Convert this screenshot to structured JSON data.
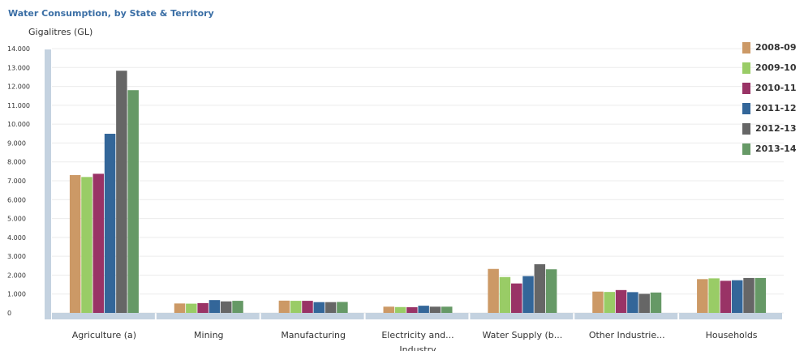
{
  "title": "Water Consumption, by State & Territory",
  "colors": {
    "title": "#3a6ea5",
    "axis_band": "#c4d2e0",
    "grid": "#ececec",
    "tick_text": "#333333"
  },
  "chart_data": {
    "type": "bar",
    "title": "Water Consumption, by State & Territory",
    "xlabel": "Industry",
    "ylabel": "Gigalitres (GL)",
    "ylim": [
      0,
      14000
    ],
    "y_ticks": [
      0,
      1000,
      2000,
      3000,
      4000,
      5000,
      6000,
      7000,
      8000,
      9000,
      10000,
      11000,
      12000,
      13000,
      14000
    ],
    "y_tick_labels": [
      "0",
      "1.000",
      "2.000",
      "3.000",
      "4.000",
      "5.000",
      "6.000",
      "7.000",
      "8.000",
      "9.000",
      "10.000",
      "11.000",
      "12.000",
      "13.000",
      "14.000"
    ],
    "grid": true,
    "legend_position": "right",
    "categories": [
      "Agriculture (a)",
      "Mining",
      "Manufacturing",
      "Electricity and...",
      "Water Supply (b...",
      "Other Industrie...",
      "Households"
    ],
    "series": [
      {
        "name": "2008-09",
        "color": "#cc9966",
        "values": [
          7300,
          500,
          650,
          330,
          2330,
          1130,
          1790
        ]
      },
      {
        "name": "2009-10",
        "color": "#99cc66",
        "values": [
          7200,
          490,
          640,
          310,
          1900,
          1110,
          1830
        ]
      },
      {
        "name": "2010-11",
        "color": "#993366",
        "values": [
          7370,
          520,
          640,
          300,
          1560,
          1210,
          1700
        ]
      },
      {
        "name": "2011-12",
        "color": "#336699",
        "values": [
          9490,
          680,
          570,
          380,
          1950,
          1100,
          1730
        ]
      },
      {
        "name": "2012-13",
        "color": "#666666",
        "values": [
          12830,
          610,
          570,
          330,
          2580,
          1010,
          1850
        ]
      },
      {
        "name": "2013-14",
        "color": "#669966",
        "values": [
          11800,
          640,
          580,
          330,
          2310,
          1080,
          1850
        ]
      }
    ]
  }
}
